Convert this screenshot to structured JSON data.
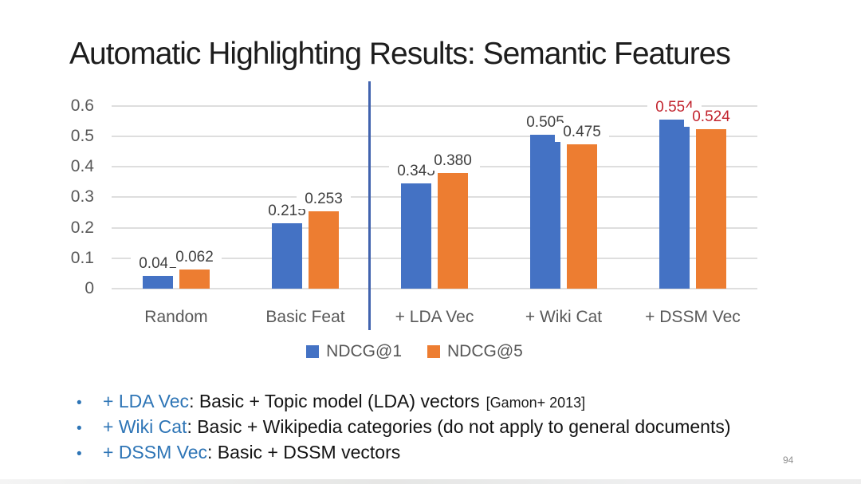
{
  "title": "Automatic Highlighting Results: Semantic Features",
  "chart_data": {
    "type": "bar",
    "categories": [
      "Random",
      "Basic Feat",
      "+ LDA Vec",
      "+ Wiki Cat",
      "+ DSSM Vec"
    ],
    "series": [
      {
        "name": "NDCG@1",
        "color": "#4472C4",
        "values": [
          0.041,
          0.215,
          0.345,
          0.505,
          0.554
        ]
      },
      {
        "name": "NDCG@5",
        "color": "#ED7D31",
        "values": [
          0.062,
          0.253,
          0.38,
          0.475,
          0.524
        ]
      }
    ],
    "title": "",
    "xlabel": "",
    "ylabel": "",
    "ylim": [
      0,
      0.6
    ],
    "yticks": [
      "0.6",
      "0.5",
      "0.4",
      "0.3",
      "0.2",
      "0.1",
      "0"
    ],
    "grid": true,
    "legend_position": "bottom",
    "label_color": "#3f3f3f",
    "highlight_category_index": 4,
    "highlight_label_color": "#c2242e",
    "separator_after_category": "Basic Feat",
    "separator_color": "#4163ae"
  },
  "legend": {
    "items": [
      {
        "label": "NDCG@1",
        "color": "#4472C4"
      },
      {
        "label": "NDCG@5",
        "color": "#ED7D31"
      }
    ]
  },
  "bullets": [
    {
      "term": "+ LDA Vec",
      "rest": ": Basic + Topic model (LDA) vectors",
      "note": "[Gamon+ 2013]"
    },
    {
      "term": "+ Wiki Cat",
      "rest": ": Basic + Wikipedia categories (do not apply to general documents)",
      "note": ""
    },
    {
      "term": "+ DSSM Vec",
      "rest": ": Basic + DSSM vectors",
      "note": ""
    }
  ],
  "page_number": "94"
}
